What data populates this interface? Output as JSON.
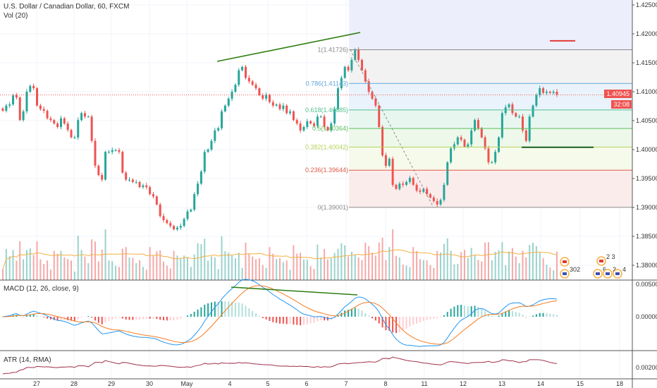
{
  "header": {
    "symbol_title": "U.S. Dollar / Canadian Dollar, 60, FXCM",
    "volume_label": "Vol (20)",
    "macd_label": "MACD (12, 26, close, 9)",
    "atr_label": "ATR (14, RMA)"
  },
  "price_tag": {
    "last_price": "1.40945",
    "countdown": "32:08",
    "color": "#ef5350"
  },
  "colors": {
    "up": "#26a69a",
    "down": "#ef5350",
    "macd": "#2196f3",
    "signal": "#f57c20",
    "atr": "#a0304a",
    "vol_ma": "#f5b041",
    "trendline": "#2e7d12"
  },
  "chart_data": {
    "type": "candlestick",
    "interval": "60",
    "price_axis_ticks": [
      "1.42500",
      "1.42000",
      "1.41500",
      "1.41000",
      "1.40500",
      "1.40000",
      "1.39500",
      "1.39000",
      "1.38500",
      "1.38000"
    ],
    "macd_axis_ticks": [
      "0.00500",
      "0.00000"
    ],
    "atr_axis_ticks": [
      "0.00200"
    ],
    "time_axis_ticks": [
      "27",
      "28",
      "29",
      "30",
      "May",
      "4",
      "5",
      "6",
      "7",
      "8",
      "11",
      "12",
      "13",
      "14",
      "15",
      "18"
    ],
    "closes": [
      1.4067,
      1.4076,
      1.4078,
      1.4094,
      1.409,
      1.4051,
      1.4066,
      1.41,
      1.411,
      1.4106,
      1.4076,
      1.407,
      1.4067,
      1.4054,
      1.4051,
      1.4045,
      1.4039,
      1.4054,
      1.4045,
      1.4034,
      1.4021,
      1.4021,
      1.4051,
      1.4063,
      1.4057,
      1.4057,
      1.4015,
      1.3972,
      1.3956,
      1.3948,
      1.3996,
      1.3996,
      1.3999,
      1.3999,
      1.3996,
      1.396,
      1.3948,
      1.3948,
      1.3944,
      1.3944,
      1.3935,
      1.3938,
      1.3935,
      1.3923,
      1.3919,
      1.3905,
      1.3885,
      1.3878,
      1.3873,
      1.3868,
      1.3862,
      1.3865,
      1.3868,
      1.388,
      1.3893,
      1.3896,
      1.3923,
      1.3941,
      1.3962,
      1.3996,
      1.4,
      1.4015,
      1.4033,
      1.4037,
      1.4066,
      1.4076,
      1.4088,
      1.41,
      1.4112,
      1.4137,
      1.4143,
      1.4124,
      1.4118,
      1.4112,
      1.4106,
      1.4094,
      1.4088,
      1.4094,
      1.4082,
      1.4076,
      1.4078,
      1.407,
      1.4076,
      1.4063,
      1.4066,
      1.4051,
      1.4045,
      1.4033,
      1.4039,
      1.4049,
      1.4045,
      1.4041,
      1.4057,
      1.4057,
      1.4039,
      1.4033,
      1.4045,
      1.407,
      1.4106,
      1.4124,
      1.4143,
      1.4137,
      1.4155,
      1.4173,
      1.4155,
      1.4137,
      1.4118,
      1.41,
      1.4088,
      1.4076,
      1.4039,
      1.399,
      1.3972,
      1.3984,
      1.3939,
      1.3932,
      1.3941,
      1.3939,
      1.3944,
      1.3951,
      1.3939,
      1.3929,
      1.3927,
      1.3932,
      1.3923,
      1.3917,
      1.3911,
      1.3905,
      1.3913,
      1.3939,
      1.3978,
      1.4002,
      1.4009,
      1.4021,
      1.4017,
      1.4005,
      1.4009,
      1.4033,
      1.4051,
      1.4037,
      1.4021,
      1.4002,
      1.3978,
      1.3978,
      1.3996,
      1.4021,
      1.4063,
      1.4073,
      1.4078,
      1.4063,
      1.4057,
      1.4057,
      1.4033,
      1.4015,
      1.4057,
      1.4076,
      1.4094,
      1.4106,
      1.4098,
      1.41,
      1.4098,
      1.41,
      1.4095
    ],
    "last_price": 1.40945,
    "fib_retracement": [
      {
        "level": "1",
        "price": "1.41726",
        "color": "#8a8a8a",
        "fill": "#f2f2f2"
      },
      {
        "level": "0.786",
        "price": "1.41143",
        "color": "#64a7d8",
        "fill": "#eaf3fb"
      },
      {
        "level": "0.618",
        "price": "1.40685",
        "color": "#4fc08d",
        "fill": "#e8f6f0"
      },
      {
        "level": "0.5",
        "price": "1.40364",
        "color": "#5cc05c",
        "fill": "#edf8ea"
      },
      {
        "level": "0.382",
        "price": "1.40042",
        "color": "#b5d55a",
        "fill": "#f6faea"
      },
      {
        "level": "0.236",
        "price": "1.39644",
        "color": "#e05a4a",
        "fill": "#fbecec"
      },
      {
        "level": "0",
        "price": "1.39001",
        "color": "#8a8a8a",
        "fill": null
      }
    ],
    "fib_above_fill": "#eceefb",
    "horizontal_marks": [
      {
        "price": 1.4188,
        "color": "#e53935"
      },
      {
        "price": 1.4004,
        "color": "#1b5e20"
      }
    ],
    "events": [
      {
        "flag": "CA",
        "count": ""
      },
      {
        "flag": "US",
        "count": "302"
      },
      {
        "flag": "CA",
        "count": "2 3"
      },
      {
        "flag": "US",
        "count": "6"
      },
      {
        "flag": "US",
        "count": "2"
      },
      {
        "flag": "US",
        "count": "4"
      }
    ]
  }
}
